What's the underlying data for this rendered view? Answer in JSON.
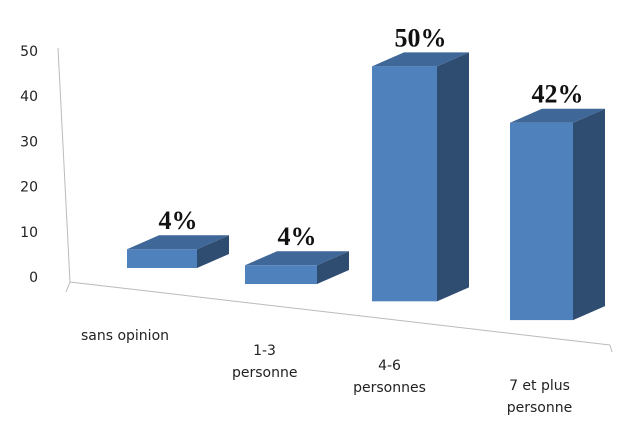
{
  "chart_data": {
    "type": "bar3d",
    "categories": [
      "sans opinion",
      "1-3 personne",
      "4-6 personnes",
      "7 et plus personne"
    ],
    "values": [
      4,
      4,
      50,
      42
    ],
    "value_labels": [
      "4%",
      "4%",
      "50%",
      "42%"
    ],
    "color": "#4f81bd",
    "ylim": [
      0,
      50
    ],
    "yticks": [
      0,
      10,
      20,
      30,
      40,
      50
    ]
  }
}
